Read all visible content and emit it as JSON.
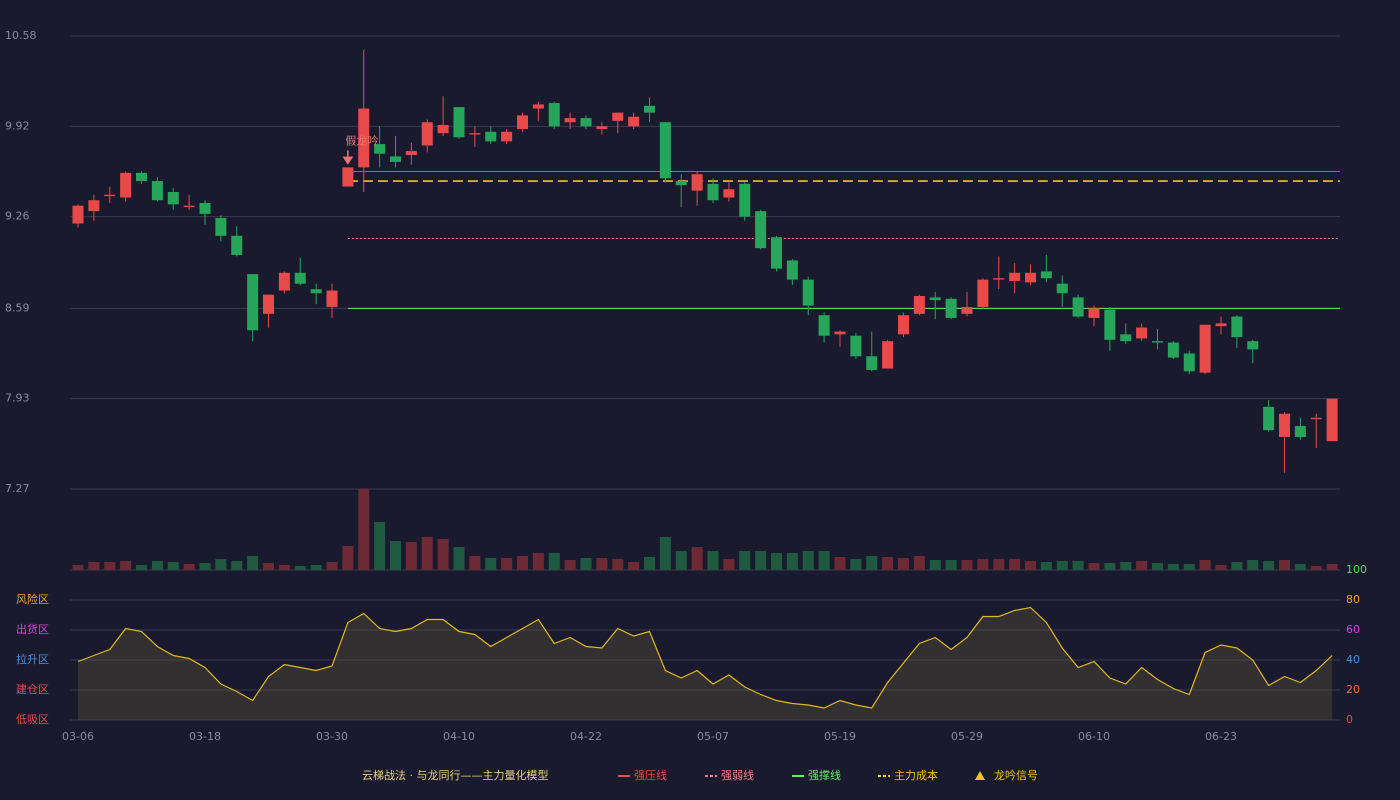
{
  "chart_data": {
    "type": "candlestick",
    "categories": [
      "03-06",
      null,
      null,
      null,
      null,
      null,
      null,
      null,
      "03-18",
      null,
      null,
      null,
      null,
      null,
      null,
      null,
      "03-30",
      null,
      null,
      null,
      null,
      null,
      null,
      null,
      "04-10",
      null,
      null,
      null,
      null,
      null,
      null,
      null,
      "04-22",
      null,
      null,
      null,
      null,
      null,
      null,
      null,
      "05-07",
      null,
      null,
      null,
      null,
      null,
      null,
      null,
      "05-19",
      null,
      null,
      null,
      null,
      null,
      null,
      null,
      "05-29",
      null,
      null,
      null,
      null,
      null,
      null,
      null,
      "06-10",
      null,
      null,
      null,
      null,
      null,
      null,
      null,
      "06-23",
      null,
      null,
      null,
      null,
      null,
      null,
      null
    ],
    "open": [
      9.21,
      9.3,
      9.41,
      9.4,
      9.58,
      9.52,
      9.44,
      9.33,
      9.36,
      9.25,
      9.12,
      8.84,
      8.55,
      8.72,
      8.85,
      8.73,
      8.6,
      9.48,
      9.62,
      9.79,
      9.7,
      9.71,
      9.78,
      9.87,
      10.06,
      9.86,
      9.88,
      9.81,
      9.9,
      10.05,
      10.09,
      9.95,
      9.98,
      9.9,
      9.96,
      9.92,
      10.07,
      9.95,
      9.52,
      9.45,
      9.5,
      9.4,
      9.5,
      9.3,
      9.11,
      8.94,
      8.8,
      8.54,
      8.4,
      8.39,
      8.24,
      8.15,
      8.4,
      8.55,
      8.67,
      8.66,
      8.55,
      8.6,
      8.8,
      8.79,
      8.78,
      8.86,
      8.77,
      8.67,
      8.52,
      8.58,
      8.4,
      8.37,
      8.35,
      8.34,
      8.26,
      8.12,
      8.46,
      8.53,
      8.35,
      7.87,
      7.65,
      7.73,
      7.78,
      7.62
    ],
    "high": [
      9.35,
      9.42,
      9.48,
      9.59,
      9.59,
      9.55,
      9.47,
      9.42,
      9.38,
      9.27,
      9.19,
      8.84,
      8.69,
      8.86,
      8.96,
      8.77,
      8.77,
      9.62,
      10.48,
      9.92,
      9.85,
      9.8,
      9.97,
      10.14,
      10.06,
      9.92,
      9.92,
      9.9,
      10.02,
      10.1,
      10.1,
      10.02,
      10.0,
      9.95,
      10.02,
      10.02,
      10.13,
      9.95,
      9.57,
      9.59,
      9.54,
      9.51,
      9.51,
      9.31,
      9.12,
      8.95,
      8.82,
      8.56,
      8.43,
      8.41,
      8.42,
      8.36,
      8.56,
      8.69,
      8.71,
      8.67,
      8.71,
      8.81,
      8.97,
      8.92,
      8.91,
      8.98,
      8.83,
      8.69,
      8.61,
      8.6,
      8.48,
      8.48,
      8.44,
      8.35,
      8.28,
      8.47,
      8.53,
      8.54,
      8.36,
      7.92,
      7.83,
      7.79,
      7.82,
      7.93
    ],
    "low": [
      9.18,
      9.23,
      9.36,
      9.37,
      9.5,
      9.37,
      9.31,
      9.31,
      9.2,
      9.08,
      8.97,
      8.35,
      8.45,
      8.7,
      8.76,
      8.62,
      8.52,
      9.48,
      9.44,
      9.62,
      9.62,
      9.64,
      9.73,
      9.85,
      9.83,
      9.77,
      9.79,
      9.79,
      9.88,
      9.96,
      9.9,
      9.9,
      9.9,
      9.86,
      9.87,
      9.9,
      9.95,
      9.51,
      9.33,
      9.34,
      9.36,
      9.37,
      9.23,
      9.02,
      8.86,
      8.76,
      8.54,
      8.34,
      8.31,
      8.22,
      8.13,
      8.15,
      8.38,
      8.54,
      8.51,
      8.51,
      8.53,
      8.59,
      8.73,
      8.7,
      8.76,
      8.78,
      8.6,
      8.52,
      8.46,
      8.28,
      8.33,
      8.35,
      8.29,
      8.22,
      8.11,
      8.11,
      8.4,
      8.3,
      8.19,
      7.69,
      7.39,
      7.63,
      7.57,
      7.62
    ],
    "close": [
      9.34,
      9.38,
      9.42,
      9.58,
      9.52,
      9.38,
      9.35,
      9.34,
      9.28,
      9.12,
      8.98,
      8.43,
      8.69,
      8.85,
      8.77,
      8.7,
      8.72,
      9.62,
      10.05,
      9.72,
      9.66,
      9.74,
      9.95,
      9.93,
      9.84,
      9.87,
      9.81,
      9.88,
      10.0,
      10.08,
      9.92,
      9.98,
      9.92,
      9.92,
      10.02,
      9.99,
      10.02,
      9.54,
      9.49,
      9.57,
      9.38,
      9.46,
      9.26,
      9.03,
      8.88,
      8.8,
      8.61,
      8.39,
      8.42,
      8.24,
      8.14,
      8.35,
      8.54,
      8.68,
      8.65,
      8.52,
      8.6,
      8.8,
      8.81,
      8.85,
      8.85,
      8.81,
      8.7,
      8.53,
      8.59,
      8.36,
      8.35,
      8.45,
      8.34,
      8.23,
      8.13,
      8.47,
      8.48,
      8.38,
      8.29,
      7.7,
      7.82,
      7.65,
      7.79,
      7.93
    ],
    "volume": [
      5,
      8,
      8,
      9,
      5,
      9,
      8,
      6,
      7,
      11,
      9,
      14,
      7,
      5,
      4,
      5,
      8,
      24,
      81,
      48,
      29,
      28,
      33,
      31,
      23,
      14,
      12,
      12,
      14,
      17,
      17,
      10,
      12,
      12,
      11,
      8,
      13,
      33,
      19,
      23,
      19,
      11,
      19,
      19,
      17,
      17,
      19,
      19,
      13,
      11,
      14,
      13,
      12,
      14,
      10,
      10,
      10,
      11,
      11,
      11,
      9,
      8,
      9,
      9,
      7,
      7,
      8,
      9,
      7,
      6,
      6,
      10,
      5,
      8,
      10,
      9,
      10,
      6,
      4,
      6
    ],
    "vlim": [
      0,
      81
    ],
    "indicator": [
      39,
      43,
      47,
      61,
      59,
      49,
      43,
      41,
      35,
      24,
      19,
      13,
      29,
      37,
      35,
      33,
      36,
      65,
      71,
      61,
      59,
      61,
      67,
      67,
      59,
      57,
      49,
      55,
      61,
      67,
      51,
      55,
      49,
      48,
      61,
      56,
      59,
      33,
      28,
      33,
      24,
      30,
      22,
      17,
      13,
      11,
      10,
      8,
      13,
      10,
      8,
      25,
      38,
      51,
      55,
      47,
      55,
      69,
      69,
      73,
      75,
      65,
      48,
      35,
      39,
      28,
      24,
      35,
      27,
      21,
      17,
      45,
      50,
      48,
      40,
      23,
      29,
      25,
      33,
      43
    ],
    "ylim": [
      7.27,
      10.58
    ],
    "yticks": [
      10.58,
      9.92,
      9.26,
      8.59,
      7.93,
      7.27
    ],
    "indicator_lim": [
      0,
      100
    ],
    "indicator_ticks": [
      100,
      80,
      60,
      40,
      20,
      0
    ],
    "indicator_tick_colors": [
      "#4ce04c",
      "#f0a030",
      "#e040e0",
      "#4a90e2",
      "#f07040",
      "#e84a4a"
    ],
    "zones": [
      {
        "label": "风险区",
        "color": "#f0a030"
      },
      {
        "label": "出货区",
        "color": "#e040e0"
      },
      {
        "label": "拉升区",
        "color": "#4a90e2"
      },
      {
        "label": "建仓区",
        "color": "#e85050"
      },
      {
        "label": "低吸区",
        "color": "#e84a4a"
      }
    ],
    "up_color": "#e84a4a",
    "down_color": "#26a65b",
    "levels": [
      {
        "name": "强压线",
        "value": 9.59,
        "color": "#e84a4a",
        "style": "solid"
      },
      {
        "name": "强弱线",
        "value": 9.1,
        "color": "#f08080",
        "style": "dotted"
      },
      {
        "name": "强撑线",
        "value": 8.59,
        "color": "#5ef05e",
        "style": "solid"
      },
      {
        "name": "主力成本",
        "value": 9.52,
        "color": "#f0c419",
        "style": "dashed"
      }
    ],
    "signal": {
      "name": "龙吟信号",
      "label": "假龙吟",
      "index": 17,
      "color": "#f0c419"
    },
    "legend_title": "云梯战法 · 与龙同行——主力量化模型"
  }
}
